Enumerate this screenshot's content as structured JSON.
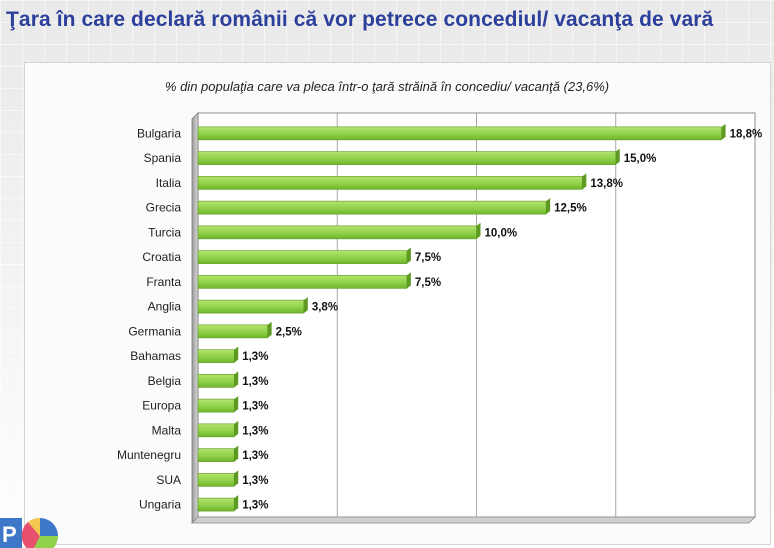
{
  "page": {
    "title": "Ţara în care declară românii că vor petrece concediul/ vacanţa de vară"
  },
  "colors": {
    "bar": "#8fd14a",
    "bar_shade": "#5e9a22",
    "title": "#2b3f9b",
    "grid": "#a9a9a9"
  },
  "chart_data": {
    "type": "bar",
    "orientation": "horizontal",
    "title": "% din populaţia care va pleca într-o ţară străină în concediu/ vacanţă (23,6%)",
    "xlabel": "",
    "ylabel": "",
    "xlim": [
      0,
      20
    ],
    "grid": true,
    "legend": "none",
    "categories": [
      "Bulgaria",
      "Spania",
      "Italia",
      "Grecia",
      "Turcia",
      "Croatia",
      "Franta",
      "Anglia",
      "Germania",
      "Bahamas",
      "Belgia",
      "Europa",
      "Malta",
      "Muntenegru",
      "SUA",
      "Ungaria"
    ],
    "values": [
      18.8,
      15.0,
      13.8,
      12.5,
      10.0,
      7.5,
      7.5,
      3.8,
      2.5,
      1.3,
      1.3,
      1.3,
      1.3,
      1.3,
      1.3,
      1.3
    ],
    "value_labels": [
      "18,8%",
      "15,0%",
      "13,8%",
      "12,5%",
      "10,0%",
      "7,5%",
      "7,5%",
      "3,8%",
      "2,5%",
      "1,3%",
      "1,3%",
      "1,3%",
      "1,3%",
      "1,3%",
      "1,3%",
      "1,3%"
    ]
  }
}
